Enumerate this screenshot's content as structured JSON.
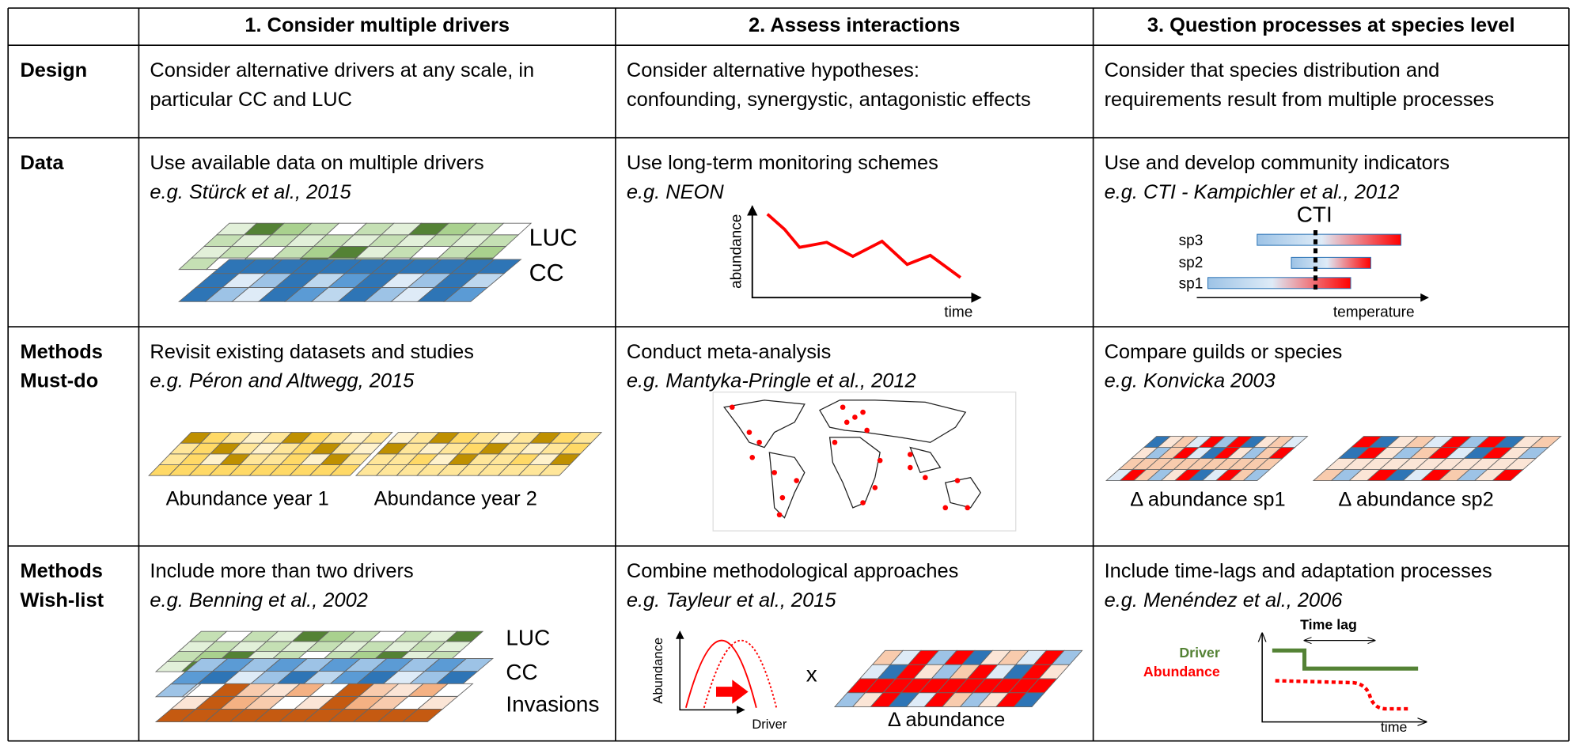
{
  "header": {
    "columns": [
      "1. Consider multiple drivers",
      "2. Assess interactions",
      "3. Question processes at species level"
    ]
  },
  "rows": [
    {
      "label": [
        "Design"
      ],
      "cells": [
        {
          "lines": [
            "Consider alternative drivers at any scale, in",
            "particular CC and LUC"
          ]
        },
        {
          "lines": [
            "Consider alternative hypotheses:",
            "confounding, synergystic, antagonistic effects"
          ]
        },
        {
          "lines": [
            "Consider that species distribution and",
            "requirements result from multiple processes"
          ]
        }
      ]
    },
    {
      "label": [
        "Data"
      ],
      "cells": [
        {
          "lines": [
            "Use available data on multiple drivers"
          ],
          "citation": "e.g. Stürck et al., 2015",
          "figure": [
            "LUC",
            "CC"
          ]
        },
        {
          "lines": [
            "Use long-term monitoring schemes"
          ],
          "citation": "e.g. NEON",
          "figure": [
            "abundance",
            "time"
          ]
        },
        {
          "lines": [
            "Use and develop community indicators"
          ],
          "citation": "e.g. CTI - Kampichler et al., 2012",
          "figure": [
            "CTI",
            "sp3",
            "sp2",
            "sp1",
            "temperature"
          ]
        }
      ]
    },
    {
      "label": [
        "Methods",
        "Must-do"
      ],
      "cells": [
        {
          "lines": [
            "Revisit existing datasets and studies"
          ],
          "citation": "e.g. Péron and Altwegg, 2015",
          "figure": [
            "Abundance year 1",
            "Abundance year 2"
          ]
        },
        {
          "lines": [
            "Conduct meta-analysis"
          ],
          "citation": "e.g. Mantyka-Pringle et al., 2012"
        },
        {
          "lines": [
            "Compare guilds or species"
          ],
          "citation": "e.g. Konvicka 2003",
          "figure": [
            "Δ abundance sp1",
            "Δ abundance sp2"
          ]
        }
      ]
    },
    {
      "label": [
        "Methods",
        "Wish-list"
      ],
      "cells": [
        {
          "lines": [
            "Include more than two drivers"
          ],
          "citation": "e.g. Benning et al., 2002",
          "figure": [
            "LUC",
            "CC",
            "Invasions"
          ]
        },
        {
          "lines": [
            "Combine methodological approaches"
          ],
          "citation": "e.g. Tayleur et al., 2015",
          "figure": [
            "Abundance",
            "Driver",
            "x",
            "Δ abundance"
          ]
        },
        {
          "lines": [
            "Include time-lags and adaptation processes"
          ],
          "citation": "e.g. Menéndez et al., 2006",
          "figure": [
            "Time lag",
            "Driver",
            "Abundance",
            "time"
          ]
        }
      ]
    }
  ]
}
